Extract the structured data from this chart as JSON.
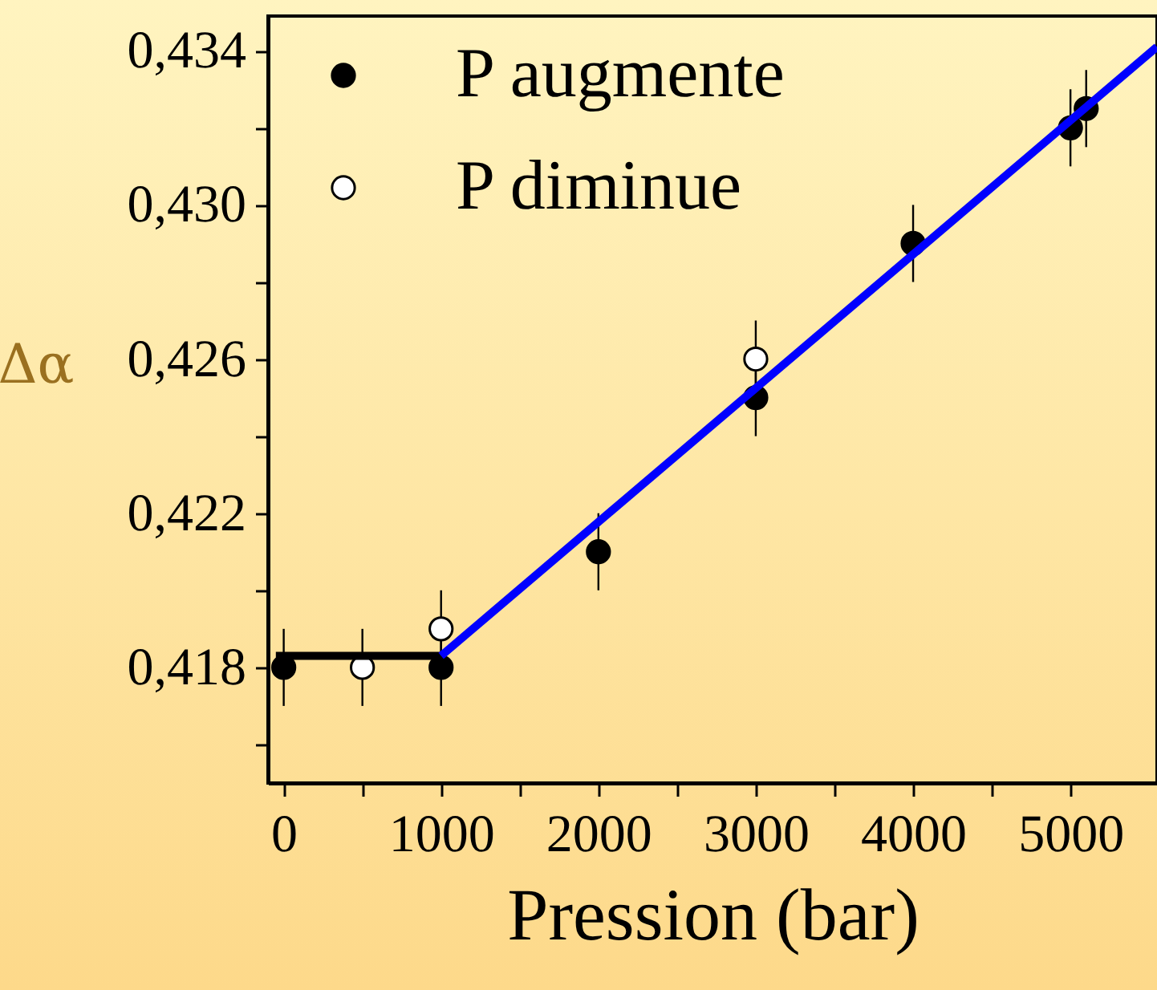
{
  "chart_data": {
    "type": "scatter",
    "xlabel": "Pression (bar)",
    "ylabel": "Δα",
    "xlim": [
      -100,
      5550
    ],
    "ylim": [
      0.415,
      0.4349
    ],
    "xticks": [
      0,
      {
        "value": 500,
        "label": null
      },
      1000,
      {
        "value": 1500,
        "label": null
      },
      2000,
      {
        "value": 2500,
        "label": null
      },
      3000,
      {
        "value": 3500,
        "label": null
      },
      4000,
      {
        "value": 4500,
        "label": null
      },
      5000
    ],
    "yticks": [
      {
        "value": 0.416,
        "label": null
      },
      {
        "value": 0.418,
        "label": "0,418"
      },
      {
        "value": 0.42,
        "label": null
      },
      {
        "value": 0.422,
        "label": "0,422"
      },
      {
        "value": 0.424,
        "label": null
      },
      {
        "value": 0.426,
        "label": "0,426"
      },
      {
        "value": 0.428,
        "label": null
      },
      {
        "value": 0.43,
        "label": "0,430"
      },
      {
        "value": 0.432,
        "label": null
      },
      {
        "value": 0.434,
        "label": "0,434"
      }
    ],
    "marker": "circle",
    "legend": "top left",
    "grid": false,
    "series": [
      {
        "name": "P augmente",
        "color": "#000000",
        "x": [
          0,
          1000,
          2000,
          3000,
          4000,
          5000,
          5100
        ],
        "values": [
          0.418,
          0.418,
          0.421,
          0.425,
          0.429,
          0.432,
          0.4325
        ],
        "errors": [
          0.001,
          0.001,
          0.001,
          0.001,
          0.001,
          0.001,
          0.001
        ]
      },
      {
        "name": "P diminue",
        "color": "#ffffff",
        "x": [
          500,
          1000,
          3000
        ],
        "values": [
          0.418,
          0.419,
          0.426
        ],
        "errors": [
          0.001,
          0.001,
          0.001
        ]
      },
      {
        "type": "line",
        "marker": "none",
        "color": "#000000",
        "x": [
          -50,
          1000
        ],
        "values": [
          0.4183,
          0.4183
        ]
      },
      {
        "type": "line",
        "marker": "none",
        "color": "#0000ff",
        "x": [
          1000,
          5550
        ],
        "values": [
          0.4183,
          0.4341
        ]
      }
    ]
  }
}
